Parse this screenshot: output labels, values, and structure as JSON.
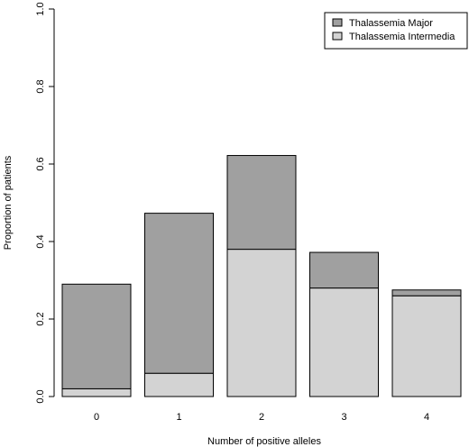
{
  "chart_data": {
    "type": "bar",
    "stacked": true,
    "categories": [
      "0",
      "1",
      "2",
      "3",
      "4"
    ],
    "series": [
      {
        "name": "Thalassemia Intermedia",
        "values": [
          0.02,
          0.06,
          0.38,
          0.28,
          0.26
        ],
        "color": "#d3d3d3"
      },
      {
        "name": "Thalassemia Major",
        "values": [
          0.27,
          0.413,
          0.242,
          0.092,
          0.015
        ],
        "color": "#a0a0a0"
      }
    ],
    "legend_order": [
      1,
      0
    ],
    "legend_position": "top-right",
    "title": "",
    "xlabel": "Number of positive alleles",
    "ylabel": "Proportion of patients",
    "ylim": [
      0,
      1
    ],
    "yticks": [
      0.0,
      0.2,
      0.4,
      0.6,
      0.8,
      1.0
    ],
    "ytick_labels": [
      "0.0",
      "0.2",
      "0.4",
      "0.6",
      "0.8",
      "1.0"
    ],
    "grid": false
  }
}
